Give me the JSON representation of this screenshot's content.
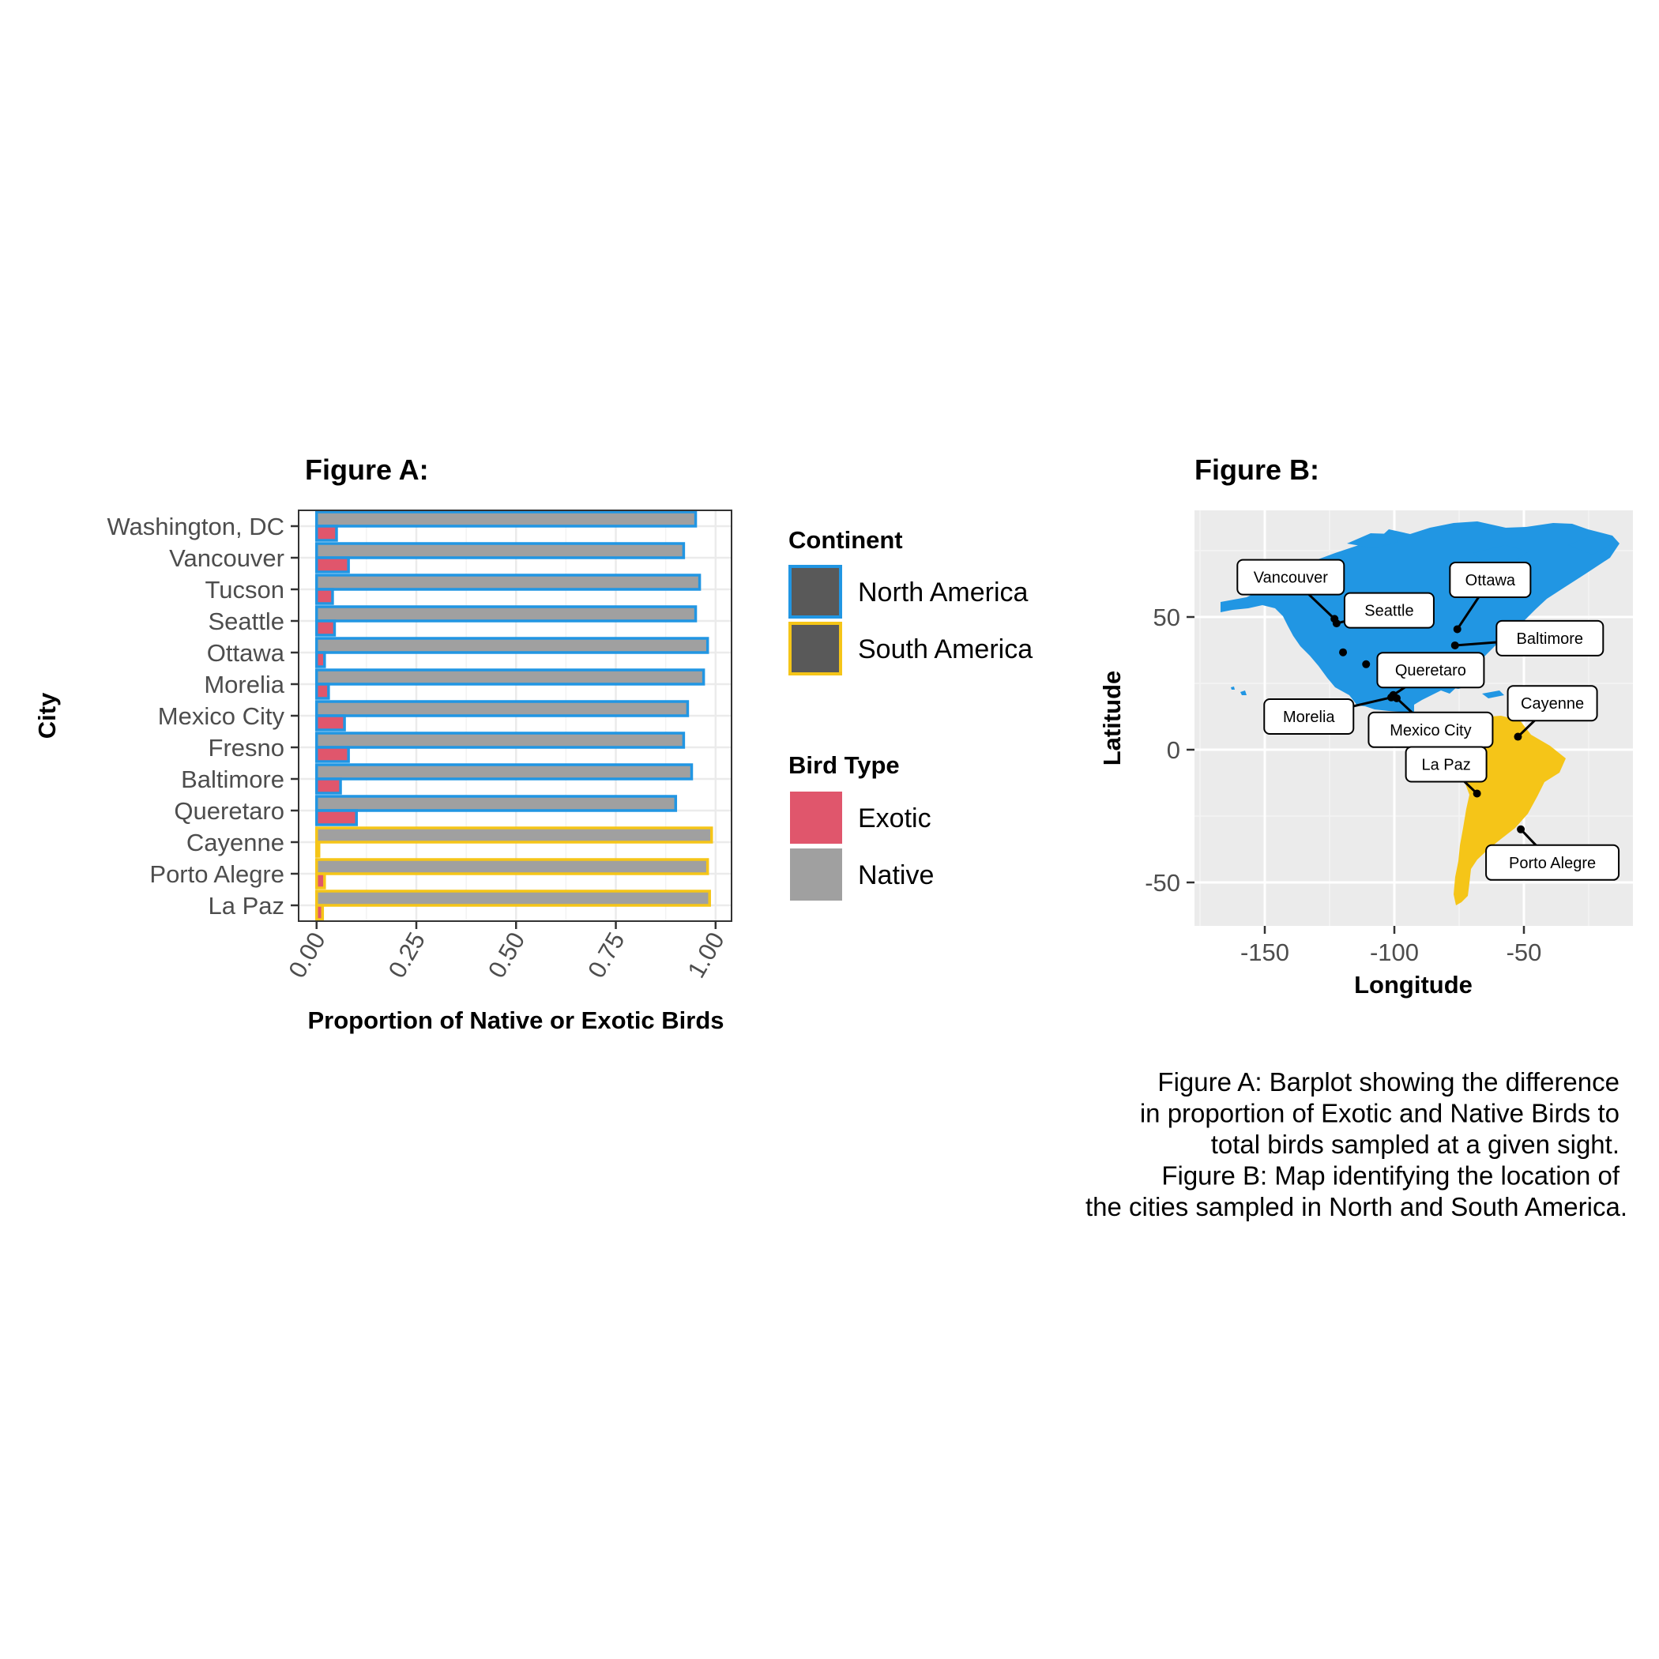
{
  "chart_data": [
    {
      "type": "bar",
      "orientation": "horizontal",
      "title": "Figure A:",
      "xlabel": "Proportion of Native or Exotic Birds",
      "ylabel": "City",
      "xlim": [
        0,
        1
      ],
      "x_ticks": [
        "0.00",
        "0.25",
        "0.50",
        "0.75",
        "1.00"
      ],
      "x_tick_values": [
        0,
        0.25,
        0.5,
        0.75,
        1.0
      ],
      "categories": [
        "Washington, DC",
        "Vancouver",
        "Tucson",
        "Seattle",
        "Ottawa",
        "Morelia",
        "Mexico City",
        "Fresno",
        "Baltimore",
        "Queretaro",
        "Cayenne",
        "Porto Alegre",
        "La Paz"
      ],
      "continent": [
        "North America",
        "North America",
        "North America",
        "North America",
        "North America",
        "North America",
        "North America",
        "North America",
        "North America",
        "North America",
        "South America",
        "South America",
        "South America"
      ],
      "series": [
        {
          "name": "Native",
          "color": "#a0a0a0",
          "values": [
            0.95,
            0.92,
            0.96,
            0.95,
            0.98,
            0.97,
            0.93,
            0.92,
            0.94,
            0.9,
            0.99,
            0.98,
            0.985
          ]
        },
        {
          "name": "Exotic",
          "color": "#e0566c",
          "values": [
            0.05,
            0.08,
            0.04,
            0.045,
            0.02,
            0.03,
            0.07,
            0.08,
            0.06,
            0.1,
            0.005,
            0.02,
            0.015
          ]
        }
      ],
      "grid": true,
      "legend": {
        "continent_title": "Continent",
        "continent_items": [
          {
            "label": "North America",
            "color": "#2196e3"
          },
          {
            "label": "South America",
            "color": "#f5c518"
          }
        ],
        "birdtype_title": "Bird Type",
        "birdtype_items": [
          {
            "label": "Exotic",
            "color": "#e0566c"
          },
          {
            "label": "Native",
            "color": "#a0a0a0"
          }
        ],
        "placement": "right"
      }
    },
    {
      "type": "map",
      "title": "Figure B:",
      "xlabel": "Longitude",
      "ylabel": "Latitude",
      "xlim": [
        -177,
        -9
      ],
      "ylim": [
        -57,
        86
      ],
      "x_ticks": [
        -150,
        -100,
        -50
      ],
      "y_ticks": [
        50,
        0,
        -50
      ],
      "x_tick_labels": [
        "-150",
        "-100",
        "-50"
      ],
      "y_tick_labels": [
        "50",
        "0",
        "-50"
      ],
      "colors": {
        "north_america": "#2196e3",
        "south_america": "#f5c518",
        "panel": "#ebebeb"
      },
      "cities": [
        {
          "name": "Vancouver",
          "lon": -123.1,
          "lat": 49.3,
          "label_lon": -140,
          "label_lat": 65
        },
        {
          "name": "Seattle",
          "lon": -122.3,
          "lat": 47.6,
          "label_lon": -102,
          "label_lat": 52.5
        },
        {
          "name": "Ottawa",
          "lon": -75.7,
          "lat": 45.4,
          "label_lon": -63,
          "label_lat": 64
        },
        {
          "name": "Baltimore",
          "lon": -76.6,
          "lat": 39.3,
          "label_lon": -40,
          "label_lat": 42
        },
        {
          "name": "Queretaro",
          "lon": -100.4,
          "lat": 20.6,
          "label_lon": -86,
          "label_lat": 30
        },
        {
          "name": "Morelia",
          "lon": -101.2,
          "lat": 19.7,
          "label_lon": -133,
          "label_lat": 12.5
        },
        {
          "name": "Mexico City",
          "lon": -99.1,
          "lat": 19.4,
          "label_lon": -86,
          "label_lat": 7.5
        },
        {
          "name": "Cayenne",
          "lon": -52.3,
          "lat": 4.9,
          "label_lon": -39,
          "label_lat": 17.5
        },
        {
          "name": "La Paz",
          "lon": -68.1,
          "lat": -16.5,
          "label_lon": -80,
          "label_lat": -5.5
        },
        {
          "name": "Porto Alegre",
          "lon": -51.2,
          "lat": -30.0,
          "label_lon": -39,
          "label_lat": -42.5
        },
        {
          "name": "Tucson",
          "lon": -110.9,
          "lat": 32.2
        },
        {
          "name": "Fresno",
          "lon": -119.8,
          "lat": 36.7
        }
      ]
    }
  ],
  "caption": {
    "lines": [
      "Figure A: Barplot showing the difference",
      "in proportion of Exotic and Native Birds to",
      "total birds sampled at a given sight.",
      "Figure B: Map identifying the location of",
      "the cities sampled in North and South America."
    ]
  }
}
